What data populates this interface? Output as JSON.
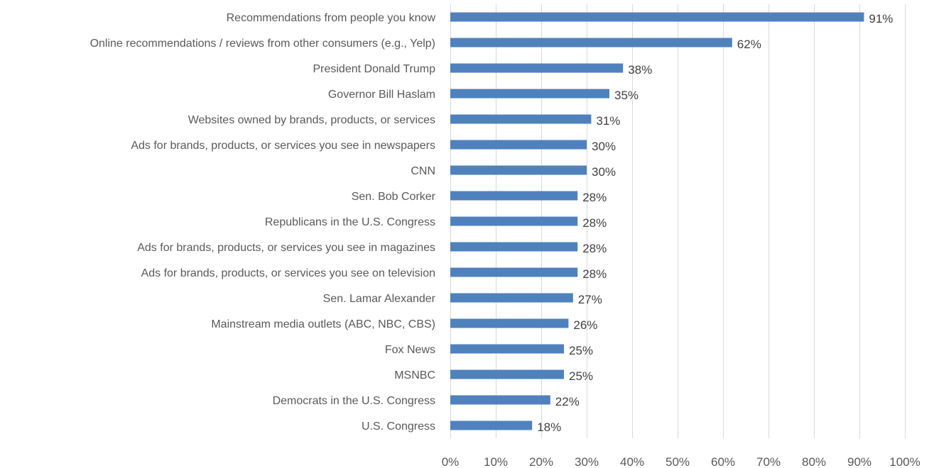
{
  "chart_data": {
    "type": "bar",
    "orientation": "horizontal",
    "title": "",
    "xlabel": "",
    "ylabel": "",
    "xlim": [
      0,
      100
    ],
    "x_ticks": [
      0,
      10,
      20,
      30,
      40,
      50,
      60,
      70,
      80,
      90,
      100
    ],
    "x_tick_labels": [
      "0%",
      "10%",
      "20%",
      "30%",
      "40%",
      "50%",
      "60%",
      "70%",
      "80%",
      "90%",
      "100%"
    ],
    "grid": "vertical",
    "legend": "none",
    "bar_color": "#4f81bd",
    "categories": [
      "Recommendations from people you know",
      "Online recommendations / reviews from other consumers (e.g., Yelp)",
      "President Donald Trump",
      "Governor Bill Haslam",
      "Websites owned by brands, products, or services",
      "Ads for brands, products, or services you see in newspapers",
      "CNN",
      "Sen. Bob Corker",
      "Republicans in the U.S. Congress",
      "Ads for brands, products, or services you see in magazines",
      "Ads for brands, products, or services you see on television",
      "Sen. Lamar Alexander",
      "Mainstream media outlets (ABC, NBC, CBS)",
      "Fox News",
      "MSNBC",
      "Democrats in the U.S. Congress",
      "U.S. Congress"
    ],
    "values": [
      91,
      62,
      38,
      35,
      31,
      30,
      30,
      28,
      28,
      28,
      28,
      27,
      26,
      25,
      25,
      22,
      18
    ],
    "data_labels": [
      "91%",
      "62%",
      "38%",
      "35%",
      "31%",
      "30%",
      "30%",
      "28%",
      "28%",
      "28%",
      "28%",
      "27%",
      "26%",
      "25%",
      "25%",
      "22%",
      "18%"
    ]
  }
}
